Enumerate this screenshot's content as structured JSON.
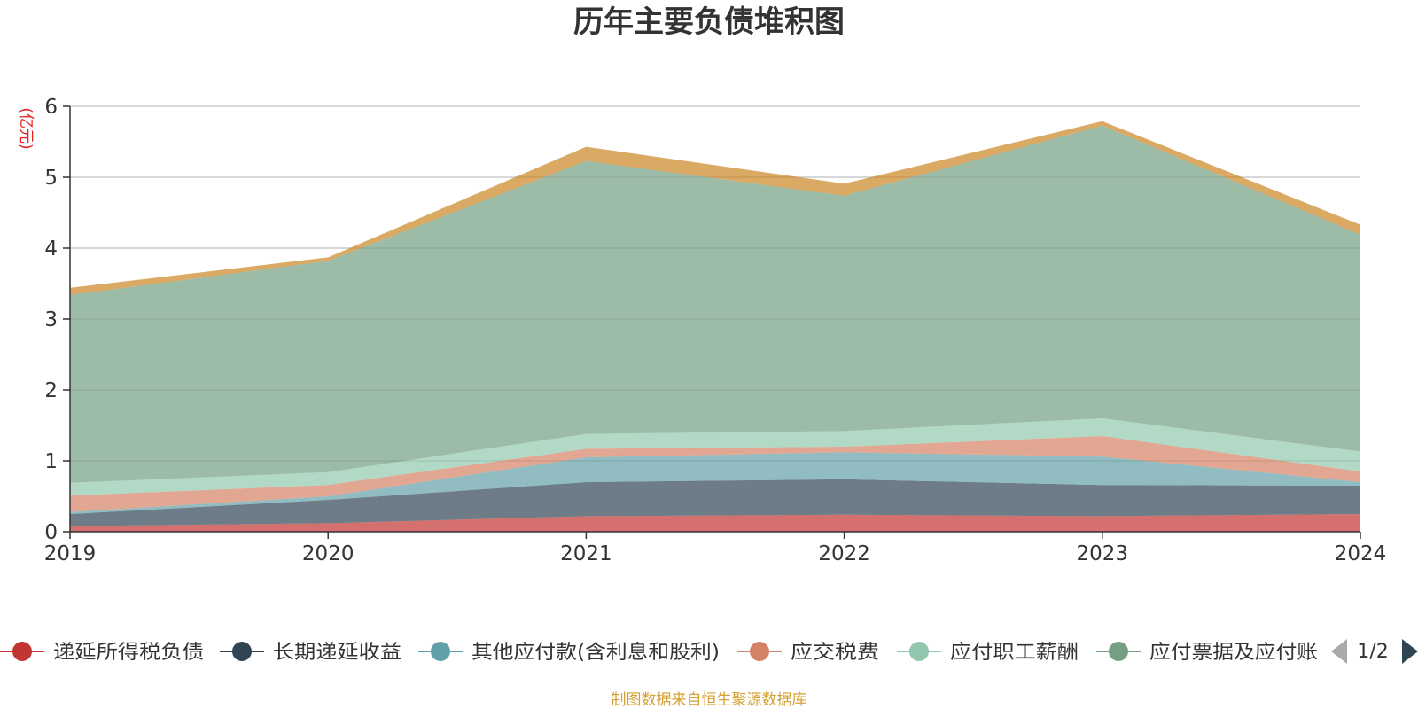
{
  "chart_data": {
    "type": "area",
    "title": "历年主要负债堆积图",
    "unit_label": "(亿元)",
    "x": [
      "2019",
      "2020",
      "2021",
      "2022",
      "2023",
      "2024"
    ],
    "ylim": [
      0,
      6
    ],
    "yticks": [
      "0",
      "1",
      "2",
      "3",
      "4",
      "5",
      "6"
    ],
    "grid": true,
    "stacked": true,
    "series": [
      {
        "name": "递延所得税负债",
        "color": "#c23531",
        "values": [
          0.08,
          0.12,
          0.22,
          0.24,
          0.22,
          0.25
        ]
      },
      {
        "name": "长期递延收益",
        "color": "#2f4554",
        "values": [
          0.17,
          0.33,
          0.48,
          0.5,
          0.44,
          0.4
        ]
      },
      {
        "name": "其他应付款(含利息和股利)",
        "color": "#61a0a8",
        "values": [
          0.03,
          0.05,
          0.35,
          0.38,
          0.4,
          0.05
        ]
      },
      {
        "name": "应交税费",
        "color": "#d48265",
        "values": [
          0.23,
          0.16,
          0.12,
          0.08,
          0.29,
          0.15
        ]
      },
      {
        "name": "应付职工薪酬",
        "color": "#91c7ae",
        "values": [
          0.18,
          0.18,
          0.21,
          0.22,
          0.25,
          0.28
        ]
      },
      {
        "name": "应付票据及应付账款",
        "color": "#749f83",
        "values": [
          2.65,
          2.98,
          3.85,
          3.32,
          4.13,
          3.06
        ]
      },
      {
        "name": "",
        "color": "#ca8622",
        "values": [
          0.1,
          0.05,
          0.2,
          0.17,
          0.06,
          0.14
        ]
      }
    ],
    "legend_placement": "bottom",
    "legend_visible_names": [
      "递延所得税负债",
      "长期递延收益",
      "其他应付款(含利息和股利)",
      "应交税费",
      "应付职工薪酬",
      "应付票据及应付账"
    ],
    "legend_page": "1/2"
  },
  "source": "制图数据来自恒生聚源数据库",
  "icons": {
    "prev": "triangle-left-icon",
    "next": "triangle-right-icon"
  }
}
